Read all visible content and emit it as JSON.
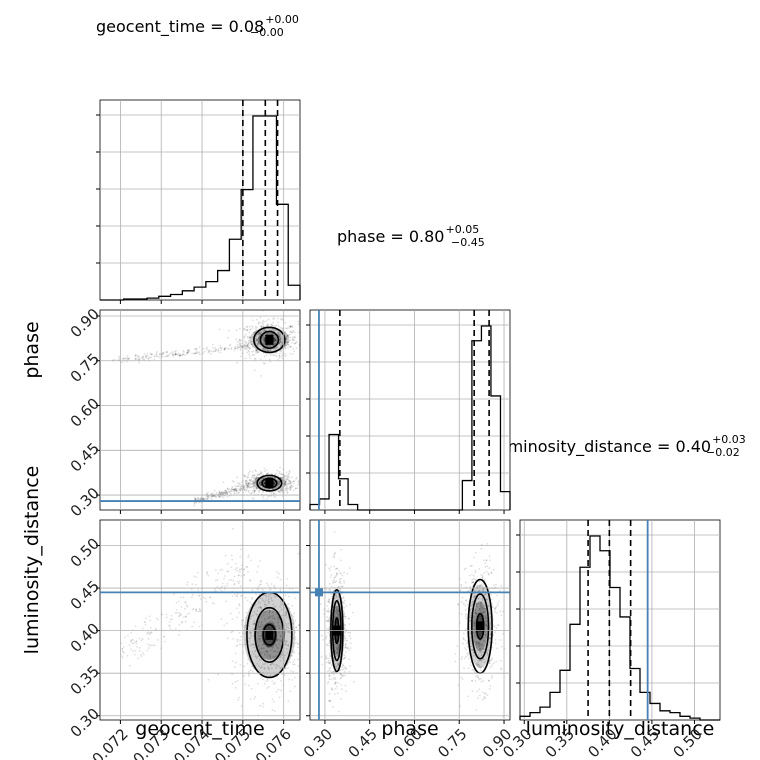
{
  "chart_data": {
    "type": "corner",
    "truth_color": "#4682b4",
    "parameters": [
      {
        "name": "geocent_time",
        "title": {
          "prefix": "geocent_time = ",
          "median": "0.08",
          "plus": "+0.00",
          "minus": "−0.00"
        },
        "range": [
          0.0715,
          0.0764
        ],
        "ticks": [
          0.072,
          0.073,
          0.074,
          0.075,
          0.076
        ],
        "tick_labels": [
          "0.072",
          "0.073",
          "0.074",
          "0.075",
          "0.076"
        ],
        "quantiles": [
          0.075,
          0.07555,
          0.07585
        ],
        "hist": [
          0,
          0,
          0.005,
          0.005,
          0.01,
          0.02,
          0.03,
          0.05,
          0.07,
          0.1,
          0.16,
          0.33,
          0.6,
          1.0,
          1.0,
          0.52,
          0.08
        ]
      },
      {
        "name": "phase",
        "title": {
          "prefix": "phase = ",
          "median": "0.80",
          "plus": "+0.05",
          "minus": "−0.45"
        },
        "range": [
          0.25,
          0.92
        ],
        "ticks": [
          0.3,
          0.45,
          0.6,
          0.75,
          0.9
        ],
        "tick_labels": [
          "0.30",
          "0.45",
          "0.60",
          "0.75",
          "0.90"
        ],
        "truth": 0.28,
        "quantiles": [
          0.35,
          0.8,
          0.85
        ],
        "hist": [
          0.03,
          0.06,
          0.41,
          0.17,
          0.03,
          0,
          0,
          0,
          0,
          0,
          0,
          0,
          0,
          0,
          0,
          0,
          0.16,
          0.92,
          1.0,
          0.62,
          0.1
        ]
      },
      {
        "name": "luminosity_distance",
        "title": {
          "prefix": "luminosity_distance = ",
          "median": "0.40",
          "plus": "+0.03",
          "minus": "−0.02"
        },
        "range": [
          0.295,
          0.53
        ],
        "ticks": [
          0.3,
          0.35,
          0.4,
          0.45,
          0.5
        ],
        "tick_labels": [
          "0.30",
          "0.35",
          "0.40",
          "0.45",
          "0.50"
        ],
        "truth": 0.445,
        "quantiles": [
          0.375,
          0.4,
          0.425
        ],
        "hist": [
          0.02,
          0.04,
          0.07,
          0.15,
          0.27,
          0.52,
          0.83,
          1.0,
          0.92,
          0.72,
          0.56,
          0.28,
          0.15,
          0.09,
          0.05,
          0.04,
          0.02,
          0.01,
          0,
          0
        ]
      }
    ],
    "pairs": [
      {
        "x": "geocent_time",
        "y": "phase",
        "clusters": [
          {
            "cx": 0.07565,
            "cy": 0.82,
            "sx": 0.00035,
            "sy": 0.03,
            "contours": [
              [
                8e-05,
                0.012
              ],
              [
                0.00022,
                0.028
              ],
              [
                0.00038,
                0.042
              ]
            ]
          },
          {
            "cx": 0.07565,
            "cy": 0.34,
            "sx": 0.0003,
            "sy": 0.018,
            "contours": [
              [
                8e-05,
                0.008
              ],
              [
                0.00018,
                0.016
              ],
              [
                0.0003,
                0.026
              ]
            ]
          }
        ],
        "tails": [
          {
            "x": [
              0.0718,
              0.0752
            ],
            "y": [
              0.75,
              0.8
            ]
          },
          {
            "x": [
              0.0738,
              0.0752
            ],
            "y": [
              0.28,
              0.33
            ]
          }
        ]
      },
      {
        "x": "geocent_time",
        "y": "luminosity_distance",
        "clusters": [
          {
            "cx": 0.07565,
            "cy": 0.395,
            "sx": 0.00045,
            "sy": 0.035,
            "contours": [
              [
                0.00015,
                0.012
              ],
              [
                0.00035,
                0.032
              ],
              [
                0.00055,
                0.05
              ]
            ]
          }
        ],
        "tails": [
          {
            "x": [
              0.072,
              0.0752
            ],
            "y": [
              0.37,
              0.48
            ]
          }
        ]
      },
      {
        "x": "phase",
        "y": "luminosity_distance",
        "clusters": [
          {
            "cx": 0.34,
            "cy": 0.4,
            "sx": 0.018,
            "sy": 0.035,
            "contours": [
              [
                0.006,
                0.015
              ],
              [
                0.014,
                0.035
              ],
              [
                0.02,
                0.048
              ]
            ]
          },
          {
            "cx": 0.82,
            "cy": 0.405,
            "sx": 0.03,
            "sy": 0.035,
            "contours": [
              [
                0.012,
                0.015
              ],
              [
                0.028,
                0.038
              ],
              [
                0.04,
                0.055
              ]
            ]
          }
        ],
        "tails": []
      }
    ]
  }
}
